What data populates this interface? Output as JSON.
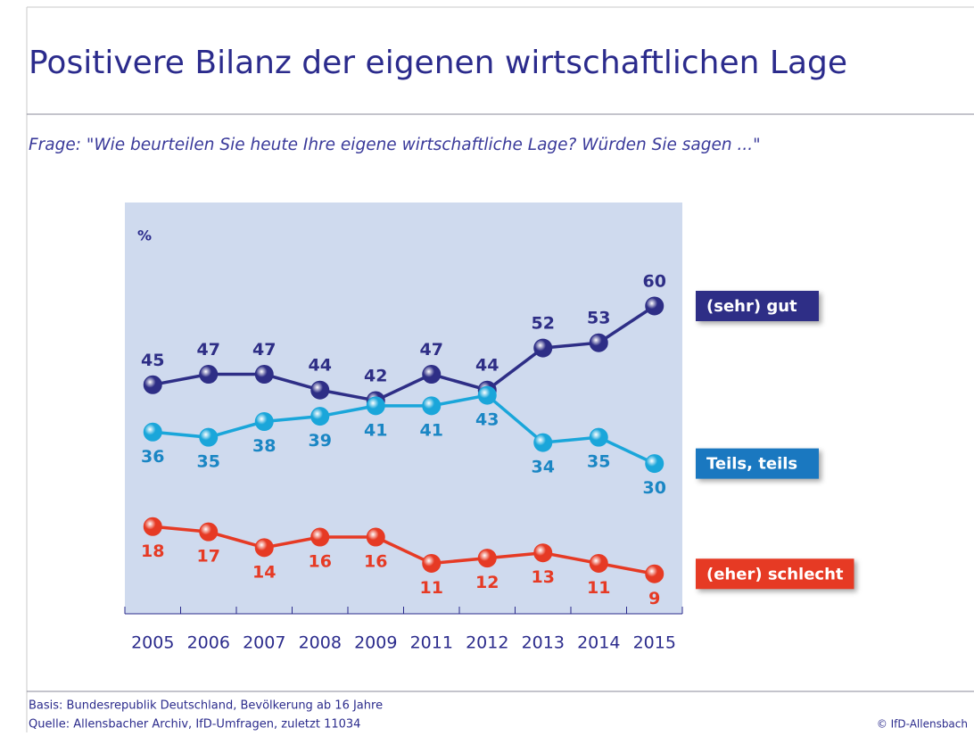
{
  "chart_data": {
    "type": "line",
    "title": "Positivere Bilanz der eigenen wirtschaftlichen Lage",
    "subtitle": "Frage: \"Wie beurteilen Sie heute Ihre eigene wirtschaftliche Lage? Würden Sie sagen ...\"",
    "y_label": "%",
    "categories": [
      "2005",
      "2006",
      "2007",
      "2008",
      "2009",
      "2011",
      "2012",
      "2013",
      "2014",
      "2015"
    ],
    "series": [
      {
        "name": "(sehr) gut",
        "color": "#2e2e86",
        "values": [
          45,
          47,
          47,
          44,
          42,
          47,
          44,
          52,
          53,
          60
        ]
      },
      {
        "name": "Teils, teils",
        "color": "#1aa6da",
        "values": [
          36,
          35,
          38,
          39,
          41,
          41,
          43,
          34,
          35,
          30
        ]
      },
      {
        "name": "(eher) schlecht",
        "color": "#e63a24",
        "values": [
          18,
          17,
          14,
          16,
          16,
          11,
          12,
          13,
          11,
          9
        ]
      }
    ],
    "ylim": [
      1.4,
      79.7
    ],
    "footer": {
      "basis": "Basis: Bundesrepublik Deutschland, Bevölkerung ab 16 Jahre",
      "source": "Quelle: Allensbacher Archiv, IfD-Umfragen, zuletzt 11034",
      "copyright": "© IfD-Allensbach"
    }
  }
}
